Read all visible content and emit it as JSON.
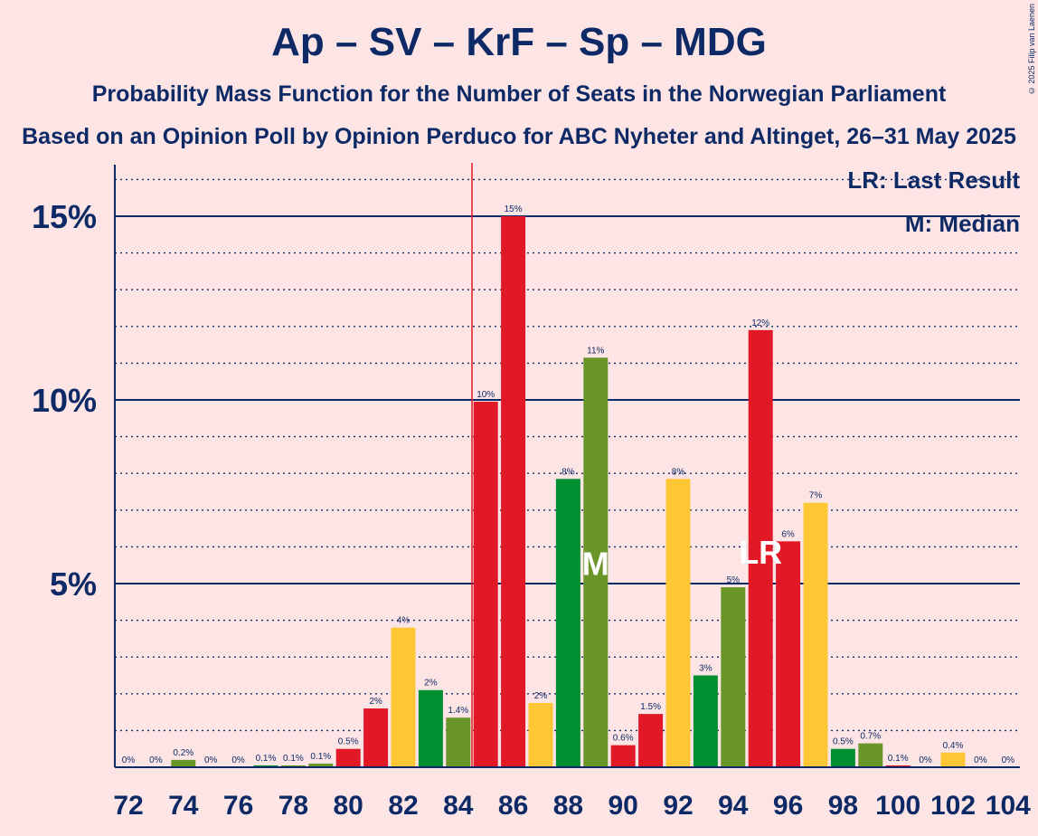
{
  "chart_data": {
    "type": "bar",
    "title": "Ap – SV – KrF – Sp – MDG",
    "subtitle": "Probability Mass Function for the Number of Seats in the Norwegian Parliament",
    "source": "Based on an Opinion Poll by Opinion Perduco for ABC Nyheter and Altinget, 26–31 May 2025",
    "copyright": "© 2025 Filip van Laenen",
    "legend": {
      "lr": "LR: Last Result",
      "m": "M: Median",
      "placement": "top-right"
    },
    "x": [
      72,
      73,
      74,
      75,
      76,
      77,
      78,
      79,
      80,
      81,
      82,
      83,
      84,
      85,
      86,
      87,
      88,
      89,
      90,
      91,
      92,
      93,
      94,
      95,
      96,
      97,
      98,
      99,
      100,
      101,
      102,
      103,
      104
    ],
    "values": [
      0,
      0,
      0.2,
      0,
      0,
      0.05,
      0.05,
      0.1,
      0.5,
      1.6,
      3.8,
      2.1,
      1.35,
      9.95,
      15.0,
      1.75,
      7.85,
      11.15,
      0.6,
      1.45,
      7.85,
      2.5,
      4.9,
      11.9,
      6.15,
      7.2,
      0.5,
      0.65,
      0.05,
      0,
      0.4,
      0,
      0
    ],
    "labels": [
      "0%",
      "0%",
      "0.2%",
      "0%",
      "0%",
      "0.1%",
      "0.1%",
      "0.1%",
      "0.5%",
      "2%",
      "4%",
      "2%",
      "1.4%",
      "10%",
      "15%",
      "2%",
      "8%",
      "11%",
      "0.6%",
      "1.5%",
      "8%",
      "3%",
      "5%",
      "12%",
      "6%",
      "7%",
      "0.5%",
      "0.7%",
      "0.1%",
      "0%",
      "0.4%",
      "0%",
      "0%"
    ],
    "bar_colors": [
      "#E11926",
      "#E11926",
      "#6A9629",
      "#6A9629",
      "#FFC734",
      "#009032",
      "#6A9629",
      "#6A9629",
      "#E11926",
      "#E11926",
      "#FFC734",
      "#009032",
      "#6A9629",
      "#E11926",
      "#E11926",
      "#FFC734",
      "#009032",
      "#6A9629",
      "#E11926",
      "#E11926",
      "#FFC734",
      "#009032",
      "#6A9629",
      "#E11926",
      "#E11926",
      "#FFC734",
      "#009032",
      "#6A9629",
      "#E11926",
      "#E11926",
      "#FFC734",
      "#009032",
      "#6A9629"
    ],
    "xticks": [
      72,
      74,
      76,
      78,
      80,
      82,
      84,
      86,
      88,
      90,
      92,
      94,
      96,
      98,
      100,
      102,
      104
    ],
    "yticks": [
      {
        "value": 5,
        "label": "5%"
      },
      {
        "value": 10,
        "label": "10%"
      },
      {
        "value": 15,
        "label": "15%"
      }
    ],
    "ylim": [
      0,
      16.3
    ],
    "grid": true,
    "majority_line_x": 84.5,
    "median": {
      "x": 89,
      "label": "M"
    },
    "last_result": {
      "x": 95,
      "label": "LR"
    }
  }
}
